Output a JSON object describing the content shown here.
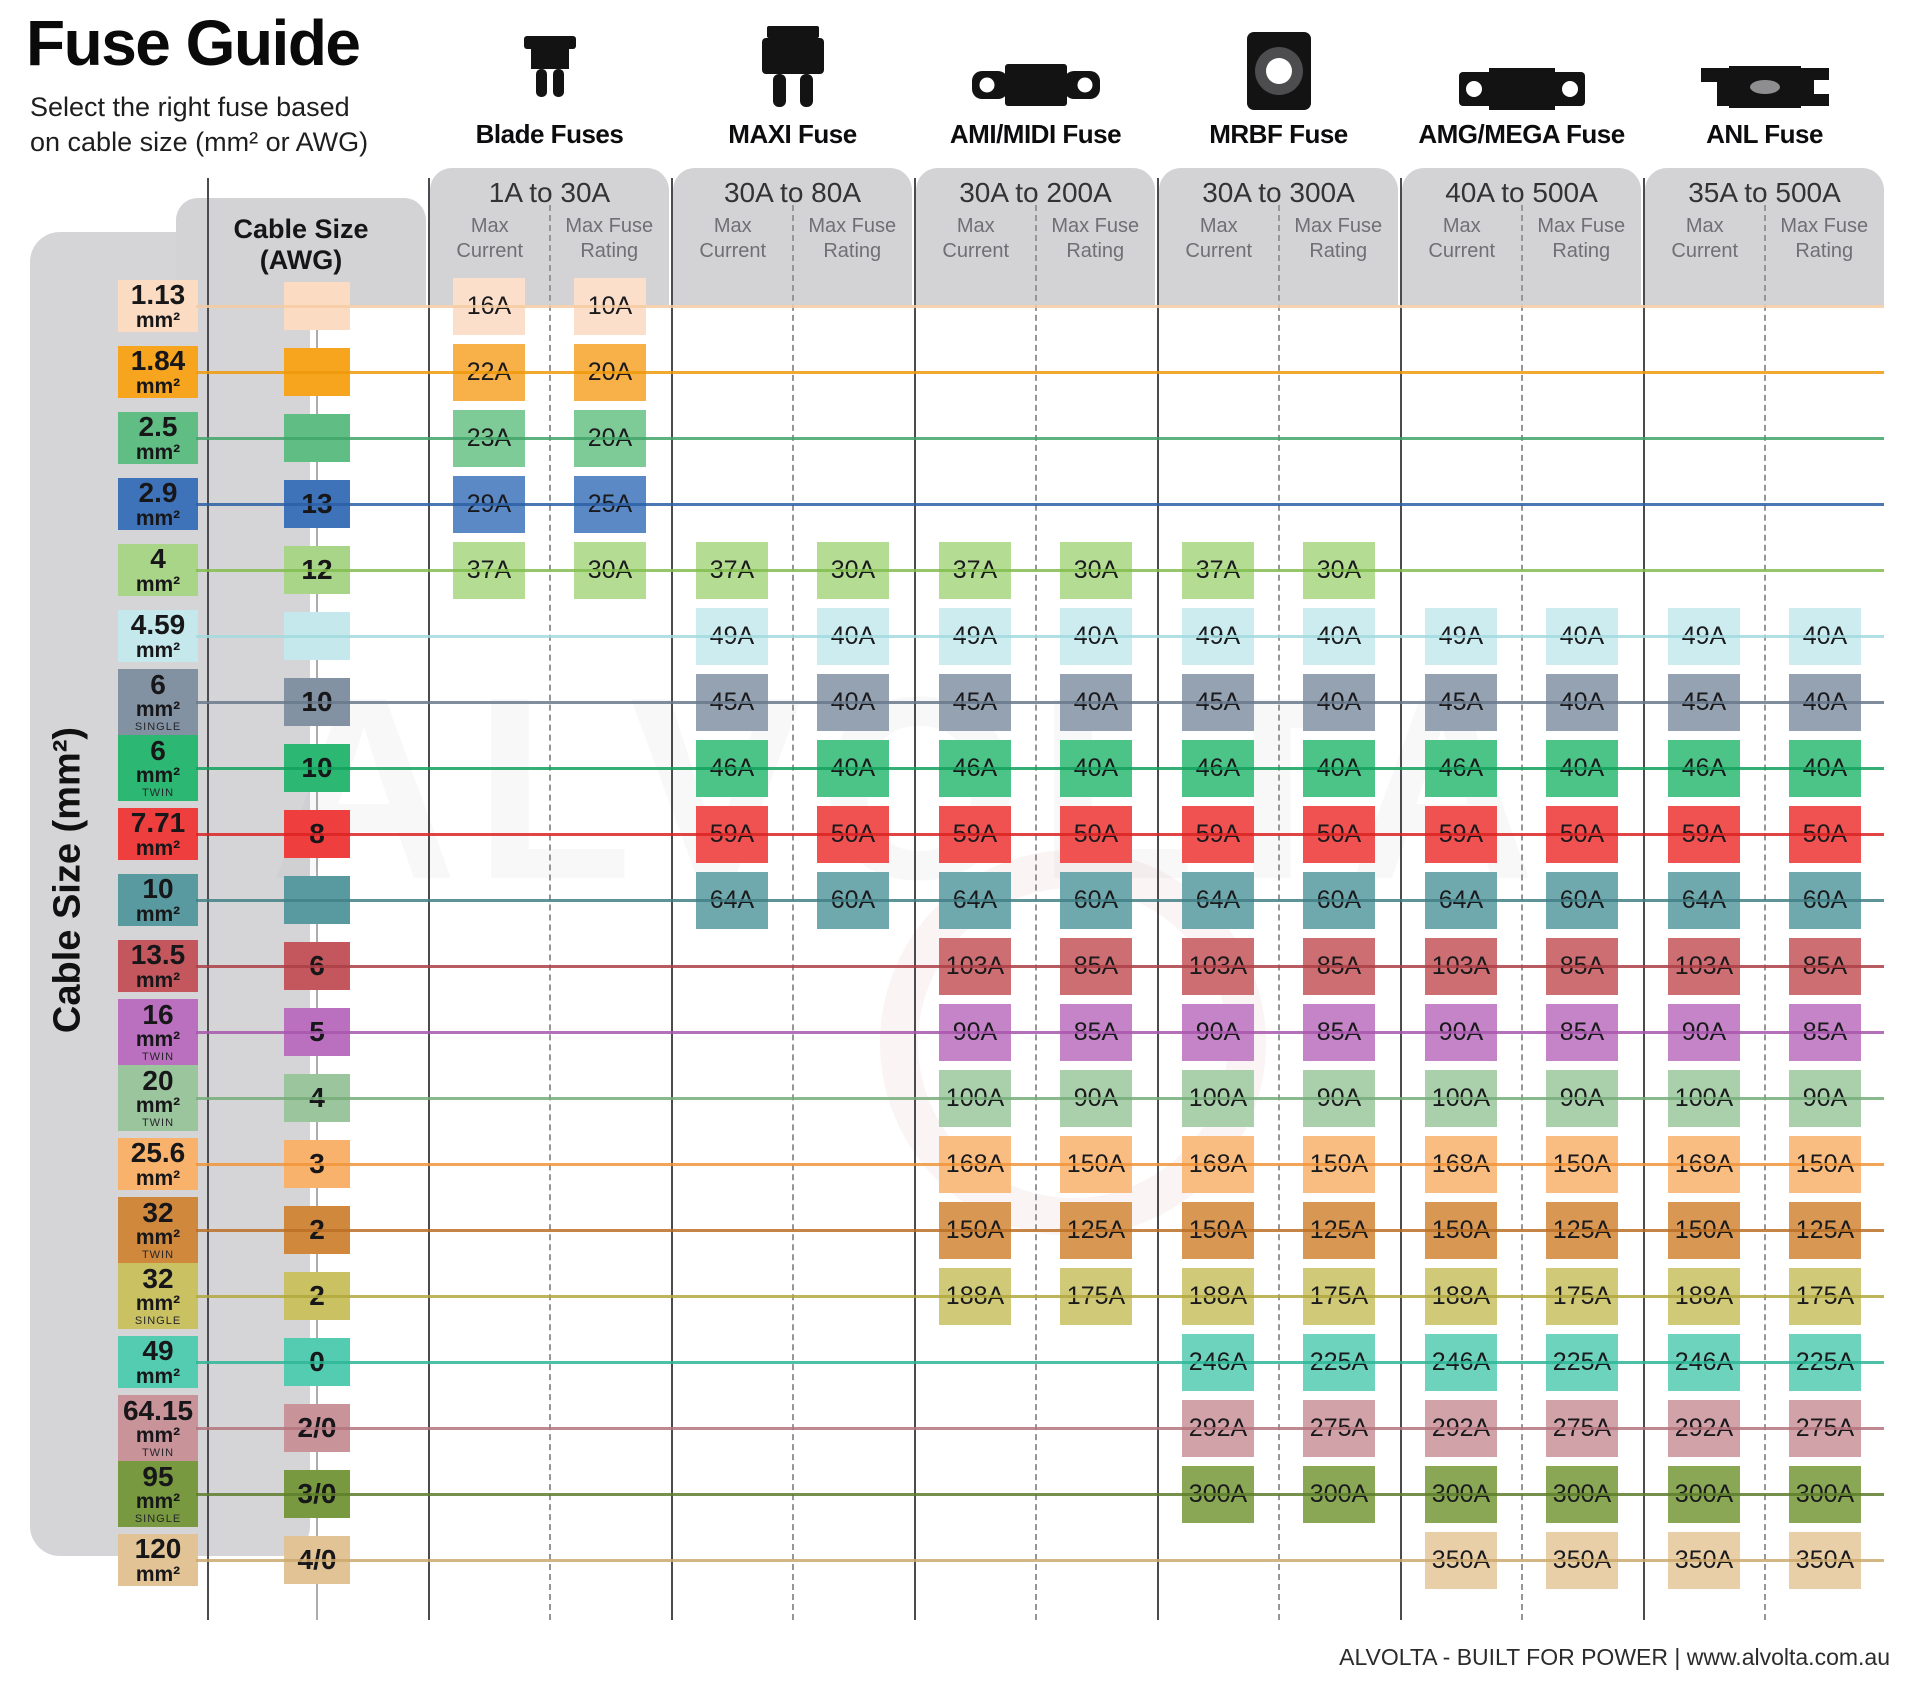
{
  "title": "Fuse Guide",
  "subtitle1": "Select the right fuse based",
  "subtitle2": "on cable size (mm² or AWG)",
  "left_axis_label": "Cable Size (mm²)",
  "awg_header1": "Cable Size",
  "awg_header2": "(AWG)",
  "watermark": "ALVOLTA",
  "footer": "ALVOLTA - BUILT FOR POWER | www.alvolta.com.au",
  "chart_data": {
    "type": "table",
    "title": "Fuse Guide",
    "row_axis": "Cable Size (mm²)",
    "secondary_row_axis": "Cable Size (AWG)",
    "unit": "mm²",
    "subcol_lines": [
      [
        "Max",
        "Current"
      ],
      [
        "Max Fuse",
        "Rating"
      ]
    ],
    "col_groups": [
      {
        "name": "Blade Fuses",
        "range": "1A to 30A",
        "icon": "blade-fuse-icon"
      },
      {
        "name": "MAXI Fuse",
        "range": "30A to 80A",
        "icon": "maxi-fuse-icon"
      },
      {
        "name": "AMI/MIDI Fuse",
        "range": "30A to 200A",
        "icon": "midi-fuse-icon"
      },
      {
        "name": "MRBF Fuse",
        "range": "30A to 300A",
        "icon": "mrbf-fuse-icon"
      },
      {
        "name": "AMG/MEGA Fuse",
        "range": "40A to 500A",
        "icon": "mega-fuse-icon"
      },
      {
        "name": "ANL Fuse",
        "range": "35A to 500A",
        "icon": "anl-fuse-icon"
      }
    ],
    "rows": [
      {
        "mm2": "1.13",
        "note": "",
        "awg": "",
        "color": "#fbdcc2",
        "cell": "#fbdfca",
        "line": "#f5cba2",
        "cells": [
          [
            "16A",
            "10A"
          ],
          null,
          null,
          null,
          null,
          null
        ]
      },
      {
        "mm2": "1.84",
        "note": "",
        "awg": "",
        "color": "#f7a41e",
        "cell": "#f8b148",
        "line": "#ef9a0c",
        "cells": [
          [
            "22A",
            "20A"
          ],
          null,
          null,
          null,
          null,
          null
        ]
      },
      {
        "mm2": "2.5",
        "note": "",
        "awg": "",
        "color": "#60bd83",
        "cell": "#7fcb98",
        "line": "#41a468",
        "cells": [
          [
            "23A",
            "20A"
          ],
          null,
          null,
          null,
          null,
          null
        ]
      },
      {
        "mm2": "2.9",
        "note": "",
        "awg": "13",
        "color": "#3e73b9",
        "cell": "#5b89c5",
        "line": "#2b5fa4",
        "cells": [
          [
            "29A",
            "25A"
          ],
          null,
          null,
          null,
          null,
          null
        ]
      },
      {
        "mm2": "4",
        "note": "",
        "awg": "12",
        "color": "#a8d587",
        "cell": "#b4dc93",
        "line": "#82bd50",
        "cells": [
          [
            "37A",
            "30A"
          ],
          [
            "37A",
            "30A"
          ],
          [
            "37A",
            "30A"
          ],
          [
            "37A",
            "30A"
          ],
          null,
          null
        ]
      },
      {
        "mm2": "4.59",
        "note": "",
        "awg": "",
        "color": "#c4e8ec",
        "cell": "#cdecef",
        "line": "#a2dade",
        "cells": [
          null,
          [
            "49A",
            "40A"
          ],
          [
            "49A",
            "40A"
          ],
          [
            "49A",
            "40A"
          ],
          [
            "49A",
            "40A"
          ],
          [
            "49A",
            "40A"
          ]
        ]
      },
      {
        "mm2": "6",
        "note": "SINGLE",
        "awg": "10",
        "color": "#8392a3",
        "cell": "#95a2b1",
        "line": "#68798c",
        "cells": [
          null,
          [
            "45A",
            "40A"
          ],
          [
            "45A",
            "40A"
          ],
          [
            "45A",
            "40A"
          ],
          [
            "45A",
            "40A"
          ],
          [
            "45A",
            "40A"
          ]
        ]
      },
      {
        "mm2": "6",
        "note": "TWIN",
        "awg": "10",
        "color": "#2cb873",
        "cell": "#4cc487",
        "line": "#13a15e",
        "cells": [
          null,
          [
            "46A",
            "40A"
          ],
          [
            "46A",
            "40A"
          ],
          [
            "46A",
            "40A"
          ],
          [
            "46A",
            "40A"
          ],
          [
            "46A",
            "40A"
          ]
        ]
      },
      {
        "mm2": "7.71",
        "note": "",
        "awg": "8",
        "color": "#ee3e3e",
        "cell": "#f05252",
        "line": "#dc2323",
        "cells": [
          null,
          [
            "59A",
            "50A"
          ],
          [
            "59A",
            "50A"
          ],
          [
            "59A",
            "50A"
          ],
          [
            "59A",
            "50A"
          ],
          [
            "59A",
            "50A"
          ]
        ]
      },
      {
        "mm2": "10",
        "note": "",
        "awg": "",
        "color": "#599aa0",
        "cell": "#6fa8ad",
        "line": "#428086",
        "cells": [
          null,
          [
            "64A",
            "60A"
          ],
          [
            "64A",
            "60A"
          ],
          [
            "64A",
            "60A"
          ],
          [
            "64A",
            "60A"
          ],
          [
            "64A",
            "60A"
          ]
        ]
      },
      {
        "mm2": "13.5",
        "note": "",
        "awg": "6",
        "color": "#c4575d",
        "cell": "#cd6e72",
        "line": "#ad3f46",
        "cells": [
          null,
          null,
          [
            "103A",
            "85A"
          ],
          [
            "103A",
            "85A"
          ],
          [
            "103A",
            "85A"
          ],
          [
            "103A",
            "85A"
          ]
        ]
      },
      {
        "mm2": "16",
        "note": "TWIN",
        "awg": "5",
        "color": "#bb70bf",
        "cell": "#c583c8",
        "line": "#a757ab",
        "cells": [
          null,
          null,
          [
            "90A",
            "85A"
          ],
          [
            "90A",
            "85A"
          ],
          [
            "90A",
            "85A"
          ],
          [
            "90A",
            "85A"
          ]
        ]
      },
      {
        "mm2": "20",
        "note": "TWIN",
        "awg": "4",
        "color": "#9bc69d",
        "cell": "#a9cfab",
        "line": "#77ad7a",
        "cells": [
          null,
          null,
          [
            "100A",
            "90A"
          ],
          [
            "100A",
            "90A"
          ],
          [
            "100A",
            "90A"
          ],
          [
            "100A",
            "90A"
          ]
        ]
      },
      {
        "mm2": "25.6",
        "note": "",
        "awg": "3",
        "color": "#f9b26c",
        "cell": "#fabd81",
        "line": "#f0953a",
        "cells": [
          null,
          null,
          [
            "168A",
            "150A"
          ],
          [
            "168A",
            "150A"
          ],
          [
            "168A",
            "150A"
          ],
          [
            "168A",
            "150A"
          ]
        ]
      },
      {
        "mm2": "32",
        "note": "TWIN",
        "awg": "2",
        "color": "#d0883d",
        "cell": "#d89752",
        "line": "#bb7026",
        "cells": [
          null,
          null,
          [
            "150A",
            "125A"
          ],
          [
            "150A",
            "125A"
          ],
          [
            "150A",
            "125A"
          ],
          [
            "150A",
            "125A"
          ]
        ]
      },
      {
        "mm2": "32",
        "note": "SINGLE",
        "awg": "2",
        "color": "#c9c162",
        "cell": "#d0c977",
        "line": "#b1a83f",
        "cells": [
          null,
          null,
          [
            "188A",
            "175A"
          ],
          [
            "188A",
            "175A"
          ],
          [
            "188A",
            "175A"
          ],
          [
            "188A",
            "175A"
          ]
        ]
      },
      {
        "mm2": "49",
        "note": "",
        "awg": "0",
        "color": "#53ccb2",
        "cell": "#6dd3bd",
        "line": "#2fb597",
        "cells": [
          null,
          null,
          null,
          [
            "246A",
            "225A"
          ],
          [
            "246A",
            "225A"
          ],
          [
            "246A",
            "225A"
          ]
        ]
      },
      {
        "mm2": "64.15",
        "note": "TWIN",
        "awg": "2/0",
        "color": "#c9939a",
        "cell": "#d1a3a9",
        "line": "#b4747e",
        "cells": [
          null,
          null,
          null,
          [
            "292A",
            "275A"
          ],
          [
            "292A",
            "275A"
          ],
          [
            "292A",
            "275A"
          ]
        ]
      },
      {
        "mm2": "95",
        "note": "SINGLE",
        "awg": "3/0",
        "color": "#78993f",
        "cell": "#89a755",
        "line": "#5e7e2b",
        "cells": [
          null,
          null,
          null,
          [
            "300A",
            "300A"
          ],
          [
            "300A",
            "300A"
          ],
          [
            "300A",
            "300A"
          ]
        ]
      },
      {
        "mm2": "120",
        "note": "",
        "awg": "4/0",
        "color": "#e2c395",
        "cell": "#e8cfa7",
        "line": "#cda96f",
        "cells": [
          null,
          null,
          null,
          null,
          [
            "350A",
            "350A"
          ],
          [
            "350A",
            "350A"
          ]
        ]
      }
    ]
  }
}
